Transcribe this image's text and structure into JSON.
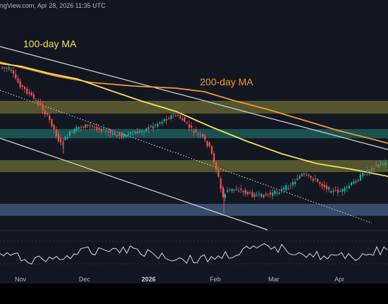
{
  "header": {
    "text": "ngView.com, Apr 28, 2026 11:35 UTC"
  },
  "labels": {
    "ma100": {
      "text": "100-day MA",
      "color": "#f5e05a"
    },
    "ma200": {
      "text": "200-day MA",
      "color": "#f39a2c"
    }
  },
  "x_axis": {
    "months": [
      {
        "label": "Nov",
        "bold": false
      },
      {
        "label": "Dec",
        "bold": false
      },
      {
        "label": "2026",
        "bold": true
      },
      {
        "label": "Feb",
        "bold": false
      },
      {
        "label": "Mar",
        "bold": false
      },
      {
        "label": "Apr",
        "bold": false
      }
    ]
  },
  "colors": {
    "background": "#131722",
    "up": "#26a69a",
    "down": "#ef5350",
    "resistance_zone": "#8c8a3a",
    "mid_zone": "#1f6b62",
    "support_zone": "#3e5677",
    "trend_line": "#d8d8d8",
    "rsi": "#d8d8d8"
  },
  "chart_data": {
    "type": "candlestick",
    "title": "",
    "time_range": [
      "late Oct 2025",
      "late Apr 2026"
    ],
    "price_scale": "relative (no price ticks visible)",
    "series": [
      {
        "name": "100-day MA",
        "values_relative": [
          0.85,
          0.84,
          0.8,
          0.77,
          0.74,
          0.71,
          0.66,
          0.59,
          0.5,
          0.44,
          0.39,
          0.35,
          0.33,
          0.31
        ]
      },
      {
        "name": "200-day MA",
        "values_relative": [
          0.86,
          0.85,
          0.83,
          0.81,
          0.8,
          0.79,
          0.77,
          0.73,
          0.68,
          0.62,
          0.56,
          0.51,
          0.47,
          0.45
        ]
      }
    ],
    "zones": [
      {
        "name": "upper resistance",
        "type": "horizontal band"
      },
      {
        "name": "mid resistance",
        "type": "horizontal band"
      },
      {
        "name": "lower resistance",
        "type": "horizontal band"
      },
      {
        "name": "support",
        "type": "horizontal band"
      }
    ],
    "trendlines": [
      "descending channel upper",
      "descending channel lower",
      "dotted midline"
    ],
    "indicator": {
      "name": "RSI",
      "range": [
        0,
        100
      ],
      "levels": [
        30,
        70
      ]
    },
    "grid": false,
    "legend": "none"
  }
}
